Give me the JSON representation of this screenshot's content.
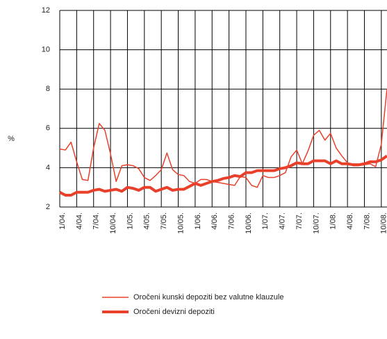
{
  "chart_data": {
    "type": "line",
    "y_label": "%",
    "categories": [
      "1/04.",
      null,
      null,
      "4/04.",
      null,
      null,
      "7/04.",
      null,
      null,
      "10/04.",
      null,
      null,
      "1/05.",
      null,
      null,
      "4/05.",
      null,
      null,
      "7/05.",
      null,
      null,
      "10/05.",
      null,
      null,
      "1/06.",
      null,
      null,
      "4/06.",
      null,
      null,
      "7/06.",
      null,
      null,
      "10/06.",
      null,
      null,
      "1/07.",
      null,
      null,
      "4/07.",
      null,
      null,
      "7/07.",
      null,
      null,
      "10/07.",
      null,
      null,
      "1/08.",
      null,
      null,
      "4/08.",
      null,
      null,
      "7/08.",
      null,
      null,
      "10/08.",
      null
    ],
    "series": [
      {
        "name": "Oročeni kunski depoziti bez valutne klauzule",
        "color": "#e8402a",
        "width": 1.5,
        "values": [
          4.95,
          4.9,
          5.3,
          4.3,
          3.4,
          3.35,
          5.0,
          6.25,
          5.9,
          4.7,
          3.3,
          4.1,
          4.15,
          4.1,
          3.95,
          3.5,
          3.35,
          3.6,
          3.9,
          4.75,
          3.9,
          3.65,
          3.6,
          3.3,
          3.2,
          3.4,
          3.4,
          3.3,
          3.25,
          3.2,
          3.15,
          3.1,
          3.55,
          3.5,
          3.1,
          3.0,
          3.6,
          3.5,
          3.5,
          3.6,
          3.75,
          4.55,
          4.9,
          4.2,
          4.85,
          5.65,
          5.9,
          5.4,
          5.75,
          5.0,
          4.6,
          4.25,
          4.1,
          4.1,
          4.15,
          4.2,
          4.05,
          5.2,
          8.0
        ]
      },
      {
        "name": "Oročeni devizni depoziti",
        "color": "#e8402a",
        "width": 4,
        "values": [
          2.75,
          2.6,
          2.6,
          2.75,
          2.75,
          2.75,
          2.85,
          2.9,
          2.8,
          2.85,
          2.9,
          2.8,
          3.0,
          2.95,
          2.85,
          3.0,
          3.0,
          2.8,
          2.9,
          3.0,
          2.85,
          2.9,
          2.9,
          3.05,
          3.2,
          3.1,
          3.2,
          3.3,
          3.35,
          3.45,
          3.5,
          3.6,
          3.55,
          3.75,
          3.75,
          3.85,
          3.85,
          3.85,
          3.85,
          3.95,
          4.0,
          4.1,
          4.25,
          4.2,
          4.2,
          4.35,
          4.35,
          4.35,
          4.2,
          4.35,
          4.2,
          4.2,
          4.15,
          4.15,
          4.2,
          4.3,
          4.3,
          4.4,
          4.6
        ]
      }
    ],
    "ylim": [
      2,
      12
    ],
    "yticks": [
      2,
      4,
      6,
      8,
      10,
      12
    ],
    "grid": true
  }
}
